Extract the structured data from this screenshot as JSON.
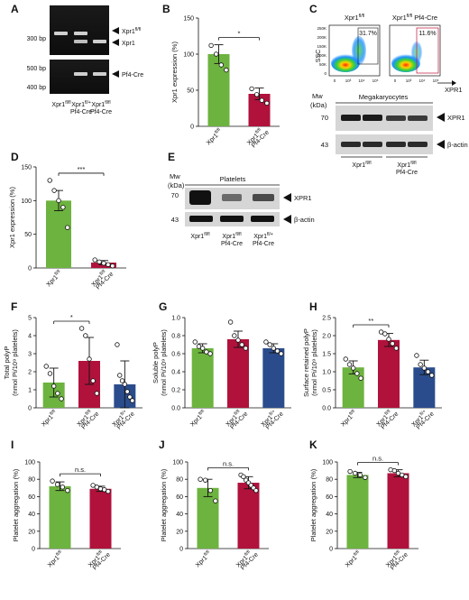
{
  "panels": {
    "A": {
      "label": "A",
      "gel_top": {
        "markers": [
          "300 bp"
        ],
        "bands": [
          "Xpr1fl/fl",
          "Xpr1"
        ]
      },
      "gel_bottom": {
        "markers": [
          "500 bp",
          "400 bp"
        ],
        "bands": [
          "Pf4-Cre"
        ]
      },
      "lanes": [
        {
          "genotype": "Xpr1fl/fl",
          "cre": ""
        },
        {
          "genotype": "Xpr1fl/+",
          "cre": "Pf4-Cre"
        },
        {
          "genotype": "Xpr1fl/fl",
          "cre": "Pf4-Cre"
        }
      ]
    },
    "B": {
      "label": "B"
    },
    "C": {
      "label": "C",
      "flow": [
        {
          "title": "Xpr1fl/fl",
          "gate_pct": "31.7%"
        },
        {
          "title": "Xpr1fl/fl Pf4-Cre",
          "gate_pct": "11.6%"
        }
      ],
      "flow_y_label": "SSC",
      "flow_y_ticks": [
        "250K",
        "200K",
        "150K",
        "100K",
        "50K",
        "0"
      ],
      "flow_x_ticks": [
        "0",
        "10³",
        "10⁴",
        "10⁵"
      ],
      "flow_x_label": "XPR1",
      "mw_label": "Mw",
      "mw_unit": "(kDa)",
      "blot_title": "Megakaryocytes",
      "mw_markers": [
        "70",
        "43"
      ],
      "bands": [
        "XPR1",
        "β-actin"
      ],
      "groups": [
        {
          "genotype": "Xpr1fl/fl",
          "cre": ""
        },
        {
          "genotype": "Xpr1fl/fl",
          "cre": "Pf4-Cre"
        }
      ]
    },
    "D": {
      "label": "D"
    },
    "E": {
      "label": "E",
      "mw_label": "Mw",
      "mw_unit": "(kDa)",
      "blot_title": "Platelets",
      "mw_markers": [
        "70",
        "43"
      ],
      "bands": [
        "XPR1",
        "β-actin"
      ],
      "groups": [
        {
          "genotype": "Xpr1fl/fl",
          "cre": ""
        },
        {
          "genotype": "Xpr1fl/fl",
          "cre": "Pf4-Cre"
        },
        {
          "genotype": "Xpr1fl/+",
          "cre": "Pf4-Cre"
        }
      ]
    },
    "F": {
      "label": "F"
    },
    "G": {
      "label": "G"
    },
    "H": {
      "label": "H"
    },
    "I": {
      "label": "I"
    },
    "J": {
      "label": "J"
    },
    "K": {
      "label": "K"
    }
  },
  "colors": {
    "green": "#6db33f",
    "red": "#b0123c",
    "blue": "#2b4c8c"
  },
  "chart_data": [
    {
      "id": "B",
      "type": "bar",
      "ylabel": "Xpr1 expression (%)",
      "ylim": [
        0,
        150
      ],
      "yticks": [
        0,
        50,
        100,
        150
      ],
      "categories": [
        {
          "genotype": "Xpr1fl/fl",
          "cre": ""
        },
        {
          "genotype": "Xpr1fl/fl",
          "cre": "Pf4-Cre"
        }
      ],
      "values": [
        100,
        45
      ],
      "errors": [
        13,
        8
      ],
      "bar_colors": [
        "green",
        "red"
      ],
      "points": [
        [
          112,
          100,
          85,
          78
        ],
        [
          52,
          44,
          36,
          32
        ]
      ],
      "significance": {
        "from": 0,
        "to": 1,
        "label": "*"
      }
    },
    {
      "id": "D",
      "type": "bar",
      "ylabel": "Xpr1 expression (%)",
      "ylim": [
        0,
        150
      ],
      "yticks": [
        0,
        50,
        100,
        150
      ],
      "categories": [
        {
          "genotype": "Xpr1fl/fl",
          "cre": ""
        },
        {
          "genotype": "Xpr1fl/fl",
          "cre": "Pf4-Cre"
        }
      ],
      "values": [
        100,
        8
      ],
      "errors": [
        15,
        3
      ],
      "bar_colors": [
        "green",
        "red"
      ],
      "points": [
        [
          130,
          115,
          100,
          90,
          60
        ],
        [
          12,
          9,
          7,
          5,
          3
        ]
      ],
      "significance": {
        "from": 0,
        "to": 1,
        "label": "***"
      }
    },
    {
      "id": "F",
      "type": "bar",
      "ylabel": "Total polyP",
      "ylabel2": "(nmol Pi/10⁹ platelets)",
      "ylim": [
        0,
        5
      ],
      "yticks": [
        0,
        1,
        2,
        3,
        4,
        5
      ],
      "categories": [
        {
          "genotype": "Xpr1fl/fl",
          "cre": ""
        },
        {
          "genotype": "Xpr1fl/fl",
          "cre": "Pf4-Cre"
        },
        {
          "genotype": "Xpr1fl/+",
          "cre": "Pf4-Cre"
        }
      ],
      "values": [
        1.4,
        2.6,
        1.3
      ],
      "errors": [
        0.8,
        1.3,
        1.3
      ],
      "bar_colors": [
        "green",
        "red",
        "blue"
      ],
      "points": [
        [
          2.3,
          1.9,
          1.2,
          0.8,
          0.5
        ],
        [
          4.4,
          4.0,
          2.7,
          1.5,
          0.8
        ],
        [
          3.5,
          1.8,
          1.5,
          1.3,
          0.9,
          0.6,
          0.4
        ]
      ],
      "significance": {
        "from": 0,
        "to": 1,
        "label": "*"
      }
    },
    {
      "id": "G",
      "type": "bar",
      "ylabel": "Soluble polyP",
      "ylabel2": "(nmol Pi/10⁹ platelets)",
      "ylim": [
        0,
        1.0
      ],
      "yticks": [
        0.0,
        0.2,
        0.4,
        0.6,
        0.8,
        1.0
      ],
      "categories": [
        {
          "genotype": "Xpr1fl/fl",
          "cre": ""
        },
        {
          "genotype": "Xpr1fl/fl",
          "cre": "Pf4-Cre"
        },
        {
          "genotype": "Xpr1fl/+",
          "cre": "Pf4-Cre"
        }
      ],
      "values": [
        0.66,
        0.76,
        0.66
      ],
      "errors": [
        0.05,
        0.09,
        0.05
      ],
      "bar_colors": [
        "green",
        "red",
        "blue"
      ],
      "points": [
        [
          0.73,
          0.68,
          0.66,
          0.62,
          0.6
        ],
        [
          0.95,
          0.8,
          0.75,
          0.7,
          0.66
        ],
        [
          0.73,
          0.7,
          0.66,
          0.63,
          0.6
        ]
      ],
      "significance": null
    },
    {
      "id": "H",
      "type": "bar",
      "ylabel": "Surface retained polyP",
      "ylabel2": "(nmol Pi/10⁹ platelets)",
      "ylim": [
        0,
        2.5
      ],
      "yticks": [
        0.0,
        0.5,
        1.0,
        1.5,
        2.0,
        2.5
      ],
      "categories": [
        {
          "genotype": "Xpr1fl/fl",
          "cre": ""
        },
        {
          "genotype": "Xpr1fl/fl",
          "cre": "Pf4-Cre"
        },
        {
          "genotype": "Xpr1fl/+",
          "cre": "Pf4-Cre"
        }
      ],
      "values": [
        1.12,
        1.88,
        1.12
      ],
      "errors": [
        0.18,
        0.18,
        0.2
      ],
      "bar_colors": [
        "green",
        "red",
        "blue"
      ],
      "points": [
        [
          1.35,
          1.2,
          1.1,
          0.95,
          0.82
        ],
        [
          2.1,
          2.05,
          1.9,
          1.78,
          1.65
        ],
        [
          1.45,
          1.2,
          1.1,
          1.0,
          0.9
        ]
      ],
      "significance": {
        "from": 0,
        "to": 1,
        "label": "**"
      }
    },
    {
      "id": "I",
      "type": "bar",
      "ylabel": "Platelet aggregation (%)",
      "ylim": [
        0,
        100
      ],
      "yticks": [
        0,
        20,
        40,
        60,
        80,
        100
      ],
      "categories": [
        {
          "genotype": "Xpr1fl/fl",
          "cre": ""
        },
        {
          "genotype": "Xpr1fl/fl",
          "cre": "Pf4-Cre"
        }
      ],
      "values": [
        72,
        69
      ],
      "errors": [
        5,
        3
      ],
      "bar_colors": [
        "green",
        "red"
      ],
      "points": [
        [
          78,
          74,
          71,
          67
        ],
        [
          73,
          71,
          69,
          68,
          66
        ]
      ],
      "significance": {
        "from": 0,
        "to": 1,
        "label": "n.s."
      }
    },
    {
      "id": "J",
      "type": "bar",
      "ylabel": "Platelet aggregation (%)",
      "ylim": [
        0,
        100
      ],
      "yticks": [
        0,
        20,
        40,
        60,
        80,
        100
      ],
      "categories": [
        {
          "genotype": "Xpr1fl/fl",
          "cre": ""
        },
        {
          "genotype": "Xpr1fl/fl",
          "cre": "Pf4-Cre"
        }
      ],
      "values": [
        70,
        76
      ],
      "errors": [
        10,
        7
      ],
      "bar_colors": [
        "green",
        "red"
      ],
      "points": [
        [
          80,
          79,
          67,
          55
        ],
        [
          85,
          83,
          79,
          76,
          73,
          70,
          67
        ]
      ],
      "significance": {
        "from": 0,
        "to": 1,
        "label": "n.s."
      }
    },
    {
      "id": "K",
      "type": "bar",
      "ylabel": "Platelet aggregation (%)",
      "ylim": [
        0,
        100
      ],
      "yticks": [
        0,
        20,
        40,
        60,
        80,
        100
      ],
      "categories": [
        {
          "genotype": "Xpr1fl/fl",
          "cre": ""
        },
        {
          "genotype": "Xpr1fl/fl",
          "cre": "Pf4-Cre"
        }
      ],
      "values": [
        85,
        87
      ],
      "errors": [
        3,
        4
      ],
      "bar_colors": [
        "green",
        "red"
      ],
      "points": [
        [
          89,
          87,
          85,
          82
        ],
        [
          91,
          90,
          87,
          85,
          83
        ]
      ],
      "significance": {
        "from": 0,
        "to": 1,
        "label": "n.s."
      }
    }
  ]
}
